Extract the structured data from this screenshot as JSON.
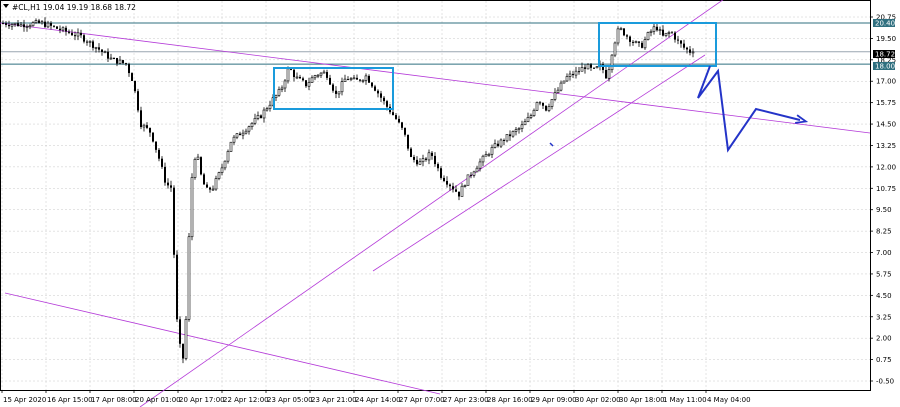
{
  "window": {
    "symbol_label": "#CL,H1  19.04 19.19 18.68 18.72"
  },
  "price_tags": {
    "current": "18.72",
    "upper_level": "20.40",
    "lower_level": "18.00"
  },
  "chart_data": {
    "type": "candlestick",
    "symbol": "#CL",
    "timeframe": "H1",
    "ohlc_last": {
      "open": 19.04,
      "high": 19.19,
      "low": 18.68,
      "close": 18.72
    },
    "y_axis": {
      "range": [
        -0.75,
        21.0
      ],
      "ticks": [
        20.75,
        19.5,
        18.25,
        17.0,
        15.75,
        14.5,
        13.25,
        12.0,
        10.75,
        9.5,
        8.25,
        7.0,
        5.75,
        4.5,
        3.25,
        2.0,
        0.75,
        -0.5
      ],
      "tick_labels": [
        "20.75",
        "19.50",
        "18.25",
        "17.00",
        "15.75",
        "14.50",
        "13.25",
        "12.00",
        "10.75",
        "9.50",
        "8.25",
        "7.00",
        "5.75",
        "4.50",
        "3.25",
        "2.00",
        "0.75",
        "-0.50"
      ]
    },
    "x_axis": {
      "tick_labels": [
        "15 Apr 2020",
        "16 Apr 15:00",
        "17 Apr 08:00",
        "20 Apr 01:00",
        "20 Apr 17:00",
        "22 Apr 12:00",
        "23 Apr 05:00",
        "23 Apr 21:00",
        "24 Apr 14:00",
        "27 Apr 07:00",
        "27 Apr 23:00",
        "28 Apr 16:00",
        "29 Apr 09:00",
        "30 Apr 02:00",
        "30 Apr 18:00",
        "1 May 11:00",
        "4 May 04:00"
      ]
    },
    "price_path": [
      [
        0,
        20.4
      ],
      [
        20,
        20.3
      ],
      [
        40,
        20.4
      ],
      [
        60,
        20.0
      ],
      [
        80,
        19.6
      ],
      [
        95,
        19.0
      ],
      [
        110,
        18.3
      ],
      [
        125,
        18.0
      ],
      [
        132,
        17.0
      ],
      [
        140,
        14.5
      ],
      [
        150,
        14.0
      ],
      [
        158,
        12.5
      ],
      [
        165,
        11.0
      ],
      [
        170,
        10.8
      ],
      [
        176,
        3.0
      ],
      [
        181,
        0.5
      ],
      [
        184,
        1.5
      ],
      [
        190,
        11.0
      ],
      [
        195,
        13.0
      ],
      [
        200,
        11.5
      ],
      [
        205,
        10.6
      ],
      [
        212,
        10.8
      ],
      [
        220,
        11.8
      ],
      [
        230,
        13.5
      ],
      [
        240,
        14.0
      ],
      [
        250,
        14.5
      ],
      [
        260,
        15.0
      ],
      [
        270,
        15.8
      ],
      [
        280,
        16.5
      ],
      [
        288,
        17.8
      ],
      [
        295,
        17.2
      ],
      [
        305,
        16.8
      ],
      [
        315,
        17.4
      ],
      [
        325,
        17.5
      ],
      [
        335,
        16.2
      ],
      [
        345,
        17.2
      ],
      [
        355,
        17.0
      ],
      [
        365,
        17.3
      ],
      [
        375,
        16.5
      ],
      [
        385,
        15.6
      ],
      [
        395,
        14.8
      ],
      [
        403,
        14.0
      ],
      [
        410,
        12.5
      ],
      [
        420,
        12.2
      ],
      [
        430,
        12.8
      ],
      [
        440,
        11.5
      ],
      [
        450,
        10.9
      ],
      [
        458,
        10.4
      ],
      [
        465,
        11.2
      ],
      [
        475,
        12.0
      ],
      [
        490,
        13.0
      ],
      [
        505,
        13.7
      ],
      [
        520,
        14.3
      ],
      [
        530,
        15.0
      ],
      [
        537,
        16.0
      ],
      [
        545,
        15.4
      ],
      [
        555,
        16.3
      ],
      [
        565,
        17.2
      ],
      [
        575,
        17.5
      ],
      [
        585,
        17.9
      ],
      [
        592,
        17.6
      ],
      [
        600,
        17.9
      ],
      [
        606,
        17.2
      ],
      [
        612,
        19.0
      ],
      [
        618,
        20.1
      ],
      [
        625,
        19.7
      ],
      [
        632,
        19.3
      ],
      [
        640,
        19.0
      ],
      [
        648,
        19.8
      ],
      [
        655,
        20.2
      ],
      [
        662,
        19.6
      ],
      [
        670,
        19.9
      ],
      [
        677,
        19.3
      ],
      [
        684,
        18.9
      ],
      [
        690,
        18.7
      ],
      [
        694,
        19.0
      ]
    ],
    "annotations": {
      "horizontal_levels": [
        {
          "price": 20.4,
          "color": "#2f6f7f"
        },
        {
          "price": 18.0,
          "color": "#2f6f7f"
        },
        {
          "price": 18.72,
          "color": "#9aa6b1"
        }
      ],
      "trend_lines": [
        {
          "p1": [
            140,
            407
          ],
          "p2": [
            727,
            -3
          ],
          "color": "#b43ad8"
        },
        {
          "p1": [
            373,
            271
          ],
          "p2": [
            705,
            55
          ],
          "color": "#b43ad8"
        },
        {
          "p1": [
            0,
            23
          ],
          "p2": [
            870,
            133
          ],
          "color": "#b43ad8"
        },
        {
          "p1": [
            5,
            293
          ],
          "p2": [
            440,
            394
          ],
          "color": "#b43ad8"
        }
      ],
      "rectangles": [
        {
          "x": 274,
          "y": 68,
          "w": 119,
          "h": 41,
          "color": "#1a9bdc"
        },
        {
          "x": 599,
          "y": 23,
          "w": 117,
          "h": 43,
          "color": "#1a9bdc"
        }
      ],
      "forecast_path": [
        [
          710,
          66
        ],
        [
          698,
          98
        ],
        [
          718,
          71
        ],
        [
          728,
          150
        ],
        [
          756,
          109
        ],
        [
          800,
          120
        ]
      ],
      "forecast_color": "#2434c8",
      "stray_mark": [
        [
          550,
          143
        ],
        [
          553,
          146
        ]
      ]
    }
  }
}
